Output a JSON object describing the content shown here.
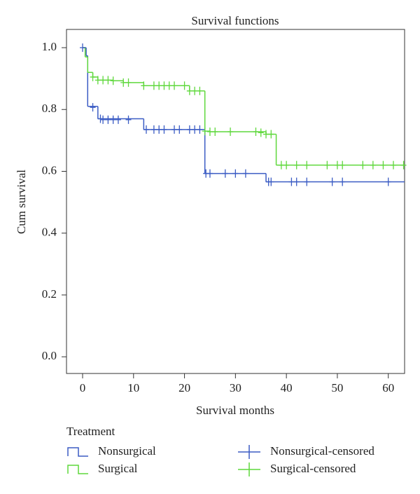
{
  "chart_data": {
    "type": "survival",
    "title": "Survival functions",
    "x_label": "Survival months",
    "y_label": "Cum survival",
    "legend_title": "Treatment",
    "xlim": [
      -3.16,
      63.2
    ],
    "ylim": [
      -0.054,
      1.059
    ],
    "xticks": [
      0,
      10,
      20,
      30,
      40,
      50,
      60
    ],
    "yticks": [
      {
        "value": 0,
        "label": "0.0"
      },
      0.2,
      0.4,
      0.6,
      0.8,
      {
        "value": 1,
        "label": "1.0"
      }
    ],
    "series": [
      {
        "name": "Nonsurgical",
        "color": "#3b5cc4",
        "x": [
          0,
          0.7,
          1,
          3,
          12,
          24,
          36,
          63.2
        ],
        "values": [
          1.0,
          0.974,
          0.81,
          0.77,
          0.735,
          0.593,
          0.566,
          0.566
        ]
      },
      {
        "name": "Surgical",
        "color": "#5fd83c",
        "x": [
          0,
          0.5,
          1,
          2,
          3,
          6,
          8,
          12,
          21,
          24,
          25,
          36,
          38,
          63.2
        ],
        "values": [
          1.0,
          0.97,
          0.92,
          0.905,
          0.895,
          0.893,
          0.887,
          0.877,
          0.86,
          0.73,
          0.728,
          0.72,
          0.62,
          0.62
        ]
      }
    ],
    "censored": [
      {
        "name": "Nonsurgical-censored",
        "color": "#3b5cc4",
        "x": [
          0,
          2,
          3.5,
          4,
          5,
          6,
          7,
          9,
          12.5,
          14,
          15,
          16,
          18,
          19,
          21,
          22,
          23,
          24.2,
          25,
          28,
          30,
          32,
          36.5,
          37,
          41,
          42,
          44,
          49,
          51,
          60
        ],
        "values": [
          1.0,
          0.807,
          0.77,
          0.767,
          0.767,
          0.767,
          0.767,
          0.767,
          0.735,
          0.735,
          0.735,
          0.735,
          0.735,
          0.735,
          0.735,
          0.735,
          0.735,
          0.593,
          0.593,
          0.593,
          0.593,
          0.593,
          0.566,
          0.566,
          0.566,
          0.566,
          0.566,
          0.566,
          0.566,
          0.566
        ]
      },
      {
        "name": "Surgical-censored",
        "color": "#5fd83c",
        "x": [
          2,
          3,
          4,
          5,
          6,
          8,
          9,
          12,
          14,
          15,
          16,
          17,
          18,
          20,
          21,
          22,
          23,
          24,
          25,
          26,
          29,
          34,
          35,
          36,
          37,
          39,
          40,
          42,
          44,
          48,
          50,
          51,
          55,
          57,
          59,
          61,
          63
        ],
        "values": [
          0.905,
          0.895,
          0.895,
          0.895,
          0.893,
          0.887,
          0.887,
          0.877,
          0.877,
          0.877,
          0.877,
          0.877,
          0.877,
          0.877,
          0.86,
          0.86,
          0.86,
          0.73,
          0.728,
          0.728,
          0.728,
          0.728,
          0.725,
          0.72,
          0.72,
          0.62,
          0.62,
          0.62,
          0.62,
          0.62,
          0.62,
          0.62,
          0.62,
          0.62,
          0.62,
          0.62,
          0.62
        ]
      }
    ]
  }
}
